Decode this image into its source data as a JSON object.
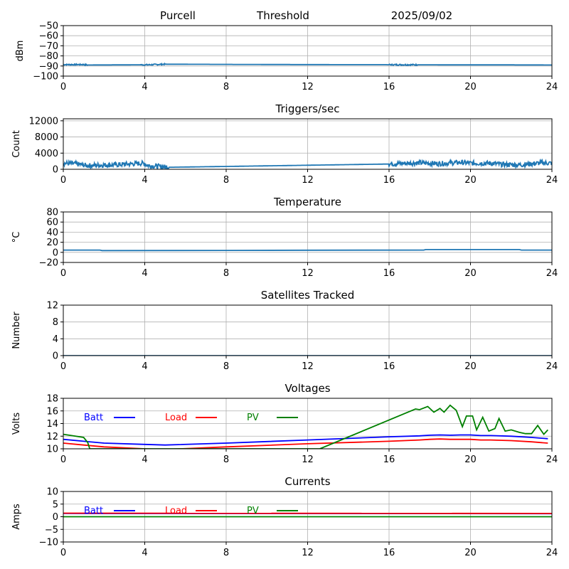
{
  "header": {
    "station": "Purcell",
    "mode": "Threshold",
    "date": "2025/09/02"
  },
  "chart_data": [
    {
      "type": "line",
      "title": "",
      "ylabel": "dBm",
      "xlim": [
        0,
        24
      ],
      "ylim": [
        -100,
        -50
      ],
      "xticks": [
        0,
        4,
        8,
        12,
        16,
        20,
        24
      ],
      "yticks": [
        -100,
        -90,
        -80,
        -70,
        -60,
        -50
      ],
      "yticklabels": [
        "−100",
        "−90",
        "−80",
        "−70",
        "−60",
        "−50"
      ],
      "grid": true,
      "noise": 0.6,
      "series": [
        {
          "color": "#1f77b4",
          "x": [
            0,
            1,
            1.2,
            3.8,
            4.2,
            5.0,
            8,
            12,
            16,
            17.4,
            20,
            22,
            24
          ],
          "y": [
            -88.6,
            -88.6,
            -89.0,
            -88.8,
            -88.8,
            -88.2,
            -88.4,
            -88.6,
            -88.7,
            -88.8,
            -88.9,
            -88.9,
            -89.0
          ]
        }
      ]
    },
    {
      "type": "line",
      "title": "Triggers/sec",
      "ylabel": "Count",
      "xlim": [
        0,
        24
      ],
      "ylim": [
        0,
        12500
      ],
      "xticks": [
        0,
        4,
        8,
        12,
        16,
        20,
        24
      ],
      "yticks": [
        0,
        4000,
        8000,
        12000
      ],
      "yticklabels": [
        "0",
        "4000",
        "8000",
        "12000"
      ],
      "grid": true,
      "noise": 600,
      "series": [
        {
          "color": "#1f77b4",
          "x": [
            0,
            0.5,
            1.2,
            1.6,
            2.5,
            3.6,
            3.9,
            4.2,
            5.2,
            8,
            12,
            16,
            17.4,
            18.5,
            19.5,
            20,
            21,
            21.5,
            22.5,
            23.5,
            24
          ],
          "y": [
            1500,
            1400,
            900,
            1000,
            1100,
            1400,
            1500,
            900,
            500,
            700,
            1000,
            1300,
            1600,
            1400,
            1700,
            1500,
            1500,
            1200,
            1100,
            1600,
            1500
          ]
        }
      ]
    },
    {
      "type": "line",
      "title": "Temperature",
      "ylabel": "°C",
      "xlim": [
        0,
        24
      ],
      "ylim": [
        -20,
        80
      ],
      "xticks": [
        0,
        4,
        8,
        12,
        16,
        20,
        24
      ],
      "yticks": [
        -20,
        0,
        20,
        40,
        60,
        80
      ],
      "yticklabels": [
        "−20",
        "0",
        "20",
        "40",
        "60",
        "80"
      ],
      "grid": true,
      "noise": 0,
      "series": [
        {
          "color": "#1f77b4",
          "x": [
            0,
            1.8,
            1.9,
            8,
            12,
            17.7,
            17.8,
            22.4,
            22.5,
            24
          ],
          "y": [
            4.5,
            4.5,
            3.5,
            3.8,
            4.2,
            4.5,
            5.5,
            5.5,
            4.5,
            4.5
          ]
        }
      ]
    },
    {
      "type": "line",
      "title": "Satellites Tracked",
      "ylabel": "Number",
      "xlim": [
        0,
        24
      ],
      "ylim": [
        0,
        12
      ],
      "xticks": [
        0,
        4,
        8,
        12,
        16,
        20,
        24
      ],
      "yticks": [
        0,
        4,
        8,
        12
      ],
      "yticklabels": [
        "0",
        "4",
        "8",
        "12"
      ],
      "grid": true,
      "noise": 0,
      "series": [
        {
          "color": "#1f77b4",
          "x": [
            0,
            24
          ],
          "y": [
            0,
            0
          ]
        }
      ]
    },
    {
      "type": "line",
      "title": "Voltages",
      "ylabel": "Volts",
      "xlim": [
        0,
        24
      ],
      "ylim": [
        10,
        18
      ],
      "xticks": [
        0,
        4,
        8,
        12,
        16,
        20,
        24
      ],
      "yticks": [
        10,
        12,
        14,
        16,
        18
      ],
      "yticklabels": [
        "10",
        "12",
        "14",
        "16",
        "18"
      ],
      "grid": true,
      "noise": 0,
      "legend": [
        {
          "label": "Batt",
          "color": "#0000ff"
        },
        {
          "label": "Load",
          "color": "#ff0000"
        },
        {
          "label": "PV",
          "color": "#008000"
        }
      ],
      "series": [
        {
          "name": "Batt",
          "color": "#0000ff",
          "x": [
            0,
            1,
            2,
            4,
            5,
            8,
            12,
            16,
            17.5,
            18,
            18.5,
            19,
            19.5,
            20,
            20.5,
            21,
            22,
            23,
            23.8
          ],
          "y": [
            11.5,
            11.2,
            10.9,
            10.7,
            10.6,
            10.9,
            11.4,
            11.9,
            12.05,
            12.15,
            12.2,
            12.15,
            12.2,
            12.2,
            12.1,
            12.1,
            12.0,
            11.8,
            11.6
          ]
        },
        {
          "name": "Load",
          "color": "#ff0000",
          "x": [
            0,
            1,
            2,
            4,
            5,
            8,
            12,
            16,
            17.5,
            18,
            18.5,
            19,
            19.5,
            20,
            20.5,
            21,
            22,
            23,
            23.8
          ],
          "y": [
            10.9,
            10.6,
            10.3,
            10.0,
            9.9,
            10.3,
            10.8,
            11.2,
            11.4,
            11.5,
            11.55,
            11.5,
            11.5,
            11.5,
            11.4,
            11.4,
            11.3,
            11.1,
            10.9
          ]
        },
        {
          "name": "PV",
          "color": "#008000",
          "x": [
            0,
            1,
            1.2,
            1.3,
            12.6,
            17.3,
            17.5,
            17.9,
            18.2,
            18.5,
            18.7,
            19.0,
            19.3,
            19.6,
            19.8,
            20.1,
            20.3,
            20.6,
            20.9,
            21.2,
            21.4,
            21.7,
            22.0,
            22.4,
            22.7,
            23.0,
            23.3,
            23.6,
            23.8
          ],
          "y": [
            12.3,
            11.8,
            11.0,
            10.0,
            10.0,
            16.3,
            16.2,
            16.7,
            15.8,
            16.4,
            15.8,
            16.9,
            16.1,
            13.5,
            15.2,
            15.2,
            13.0,
            15.0,
            12.8,
            13.2,
            14.8,
            12.8,
            13.0,
            12.6,
            12.4,
            12.4,
            13.7,
            12.3,
            13.0
          ]
        }
      ]
    },
    {
      "type": "line",
      "title": "Currents",
      "ylabel": "Amps",
      "xlim": [
        0,
        24
      ],
      "ylim": [
        -10,
        10
      ],
      "xticks": [
        0,
        4,
        8,
        12,
        16,
        20,
        24
      ],
      "yticks": [
        -10,
        -5,
        0,
        5,
        10
      ],
      "yticklabels": [
        "−10",
        "−5",
        "0",
        "5",
        "10"
      ],
      "grid": true,
      "noise": 0,
      "legend": [
        {
          "label": "Batt",
          "color": "#0000ff"
        },
        {
          "label": "Load",
          "color": "#ff0000"
        },
        {
          "label": "PV",
          "color": "#008000"
        }
      ],
      "series": [
        {
          "name": "Batt",
          "color": "#0000ff",
          "x": [
            0,
            24
          ],
          "y": [
            1.3,
            1.2
          ]
        },
        {
          "name": "Load",
          "color": "#ff0000",
          "x": [
            0,
            24
          ],
          "y": [
            1.4,
            1.3
          ]
        },
        {
          "name": "PV",
          "color": "#008000",
          "x": [
            0,
            24
          ],
          "y": [
            0.0,
            0.0
          ]
        }
      ]
    }
  ]
}
